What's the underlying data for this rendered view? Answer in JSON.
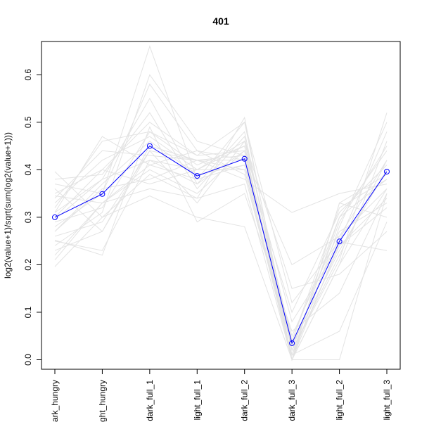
{
  "chart_data": {
    "type": "line",
    "title": "401",
    "xlabel": "",
    "ylabel": "log2(value+1)/sqrt(sum(log2(value+1)))",
    "categories": [
      "dark_hungry",
      "light_hungry",
      "dark_full_1",
      "light_full_1",
      "dark_full_2",
      "dark_full_3",
      "light_full_2",
      "light_full_3"
    ],
    "category_labels_shown": [
      "ark_hungry",
      "ght_hungry",
      "dark_full_1",
      "light_full_1",
      "dark_full_2",
      "dark_full_3",
      "light_full_2",
      "light_full_3"
    ],
    "ylim": [
      -0.02,
      0.67
    ],
    "yticks": [
      0.0,
      0.1,
      0.2,
      0.3,
      0.4,
      0.5,
      0.6
    ],
    "ytick_labels": [
      "0.0",
      "0.1",
      "0.2",
      "0.3",
      "0.4",
      "0.5",
      "0.6"
    ],
    "grid": false,
    "highlight_series": {
      "color": "#0000ff",
      "marker": "open-circle",
      "values": [
        0.3,
        0.349,
        0.45,
        0.387,
        0.423,
        0.035,
        0.249,
        0.396
      ]
    },
    "background_series_color": "#e3e3e3",
    "background_series": [
      [
        0.196,
        0.3,
        0.345,
        0.3,
        0.28,
        0.0,
        0.248,
        0.23
      ],
      [
        0.252,
        0.22,
        0.49,
        0.29,
        0.35,
        0.06,
        0.14,
        0.35
      ],
      [
        0.21,
        0.33,
        0.4,
        0.35,
        0.44,
        0.0,
        0.2,
        0.46
      ],
      [
        0.27,
        0.36,
        0.38,
        0.42,
        0.4,
        0.01,
        0.06,
        0.29
      ],
      [
        0.31,
        0.38,
        0.42,
        0.37,
        0.48,
        0.0,
        0.28,
        0.5
      ],
      [
        0.33,
        0.42,
        0.47,
        0.4,
        0.46,
        0.04,
        0.3,
        0.44
      ],
      [
        0.38,
        0.39,
        0.52,
        0.36,
        0.47,
        0.02,
        0.22,
        0.42
      ],
      [
        0.396,
        0.3,
        0.39,
        0.34,
        0.51,
        0.0,
        0.33,
        0.3
      ],
      [
        0.36,
        0.27,
        0.45,
        0.42,
        0.43,
        0.2,
        0.26,
        0.36
      ],
      [
        0.24,
        0.31,
        0.6,
        0.46,
        0.43,
        0.03,
        0.23,
        0.4
      ],
      [
        0.28,
        0.35,
        0.58,
        0.44,
        0.39,
        0.01,
        0.3,
        0.38
      ],
      [
        0.34,
        0.44,
        0.43,
        0.42,
        0.38,
        0.31,
        0.35,
        0.37
      ],
      [
        0.3,
        0.4,
        0.37,
        0.4,
        0.4,
        0.0,
        0.0,
        0.35
      ],
      [
        0.22,
        0.33,
        0.41,
        0.38,
        0.41,
        0.05,
        0.27,
        0.33
      ],
      [
        0.26,
        0.29,
        0.44,
        0.42,
        0.42,
        0.1,
        0.31,
        0.41
      ],
      [
        0.32,
        0.46,
        0.48,
        0.43,
        0.5,
        0.12,
        0.25,
        0.48
      ],
      [
        0.35,
        0.4,
        0.5,
        0.43,
        0.44,
        0.02,
        0.29,
        0.45
      ],
      [
        0.29,
        0.32,
        0.48,
        0.41,
        0.45,
        0.08,
        0.24,
        0.34
      ],
      [
        0.37,
        0.35,
        0.66,
        0.38,
        0.5,
        0.02,
        0.21,
        0.52
      ],
      [
        0.23,
        0.27,
        0.44,
        0.33,
        0.46,
        0.15,
        0.18,
        0.27
      ],
      [
        0.31,
        0.47,
        0.41,
        0.44,
        0.42,
        0.04,
        0.32,
        0.38
      ],
      [
        0.27,
        0.37,
        0.46,
        0.39,
        0.41,
        0.01,
        0.24,
        0.32
      ],
      [
        0.345,
        0.33,
        0.36,
        0.34,
        0.37,
        0.0,
        0.33,
        0.39
      ],
      [
        0.295,
        0.38,
        0.55,
        0.37,
        0.44,
        0.03,
        0.26,
        0.42
      ],
      [
        0.25,
        0.23,
        0.42,
        0.4,
        0.45,
        0.0,
        0.2,
        0.36
      ]
    ]
  }
}
